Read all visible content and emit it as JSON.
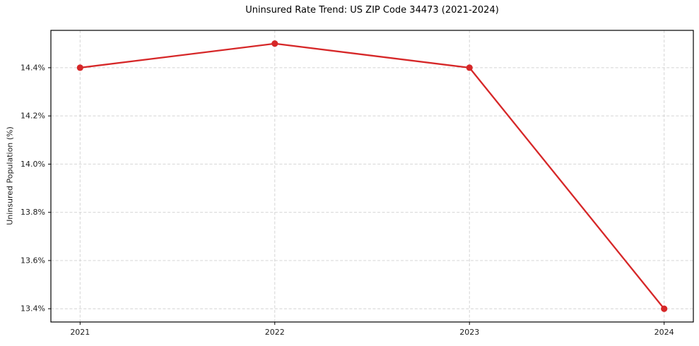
{
  "chart_data": {
    "type": "line",
    "title": "Uninsured Rate Trend: US ZIP Code 34473 (2021-2024)",
    "xlabel": "",
    "ylabel": "Uninsured Population (%)",
    "x": [
      2021,
      2022,
      2023,
      2024
    ],
    "values": [
      14.4,
      14.5,
      14.4,
      13.4
    ],
    "x_tick_labels": [
      "2021",
      "2022",
      "2023",
      "2024"
    ],
    "y_ticks": [
      13.4,
      13.6,
      13.8,
      14.0,
      14.2,
      14.4
    ],
    "y_tick_labels": [
      "13.4%",
      "13.6%",
      "13.8%",
      "14.0%",
      "14.2%",
      "14.4%"
    ],
    "xlim": [
      2020.85,
      2024.15
    ],
    "ylim": [
      13.345,
      14.555
    ],
    "grid": true,
    "grid_style": "dashed",
    "legend_position": "none",
    "line_color": "#d62728",
    "marker_color": "#d62728",
    "grid_color": "#cccccc",
    "frame_color": "#000000",
    "text_color": "#1a1a1a",
    "background_color": "#ffffff"
  }
}
